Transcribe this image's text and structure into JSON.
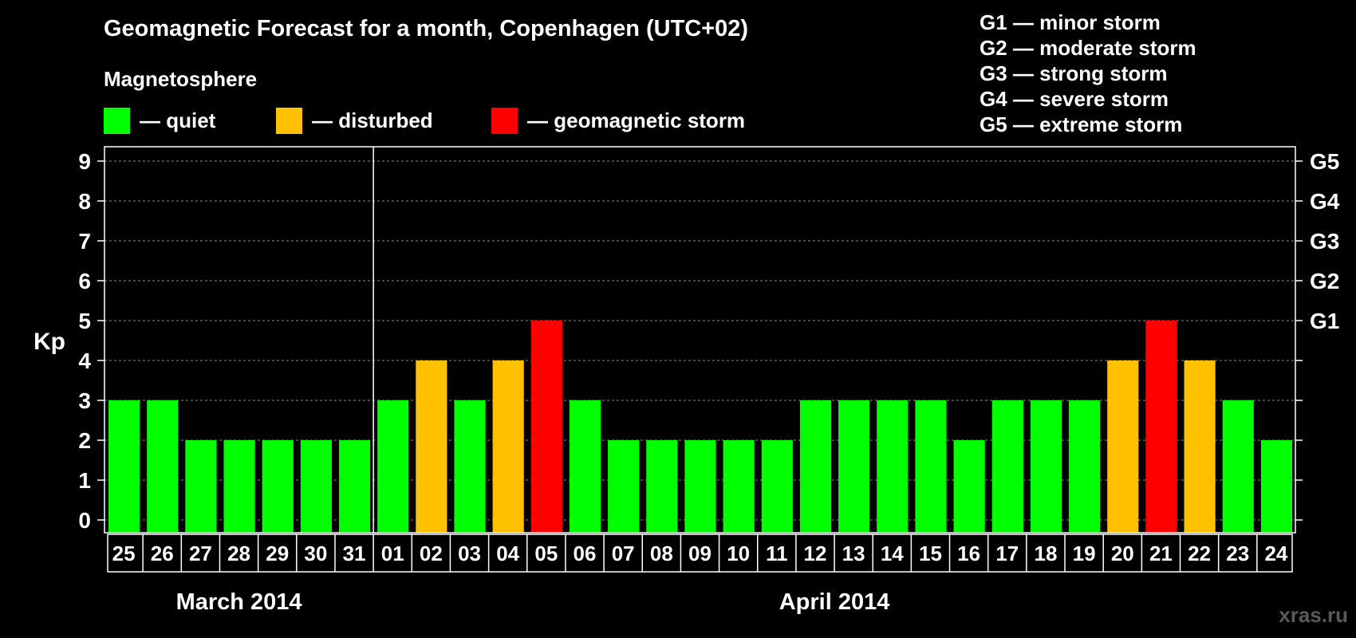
{
  "header": {
    "title": "Geomagnetic Forecast for a month, Copenhagen (UTC+02)",
    "subtitle": "Magnetosphere"
  },
  "legend": {
    "quiet": {
      "label": "— quiet",
      "color": "#00ff00"
    },
    "disturbed": {
      "label": "— disturbed",
      "color": "#ffc000"
    },
    "storm": {
      "label": "— geomagnetic storm",
      "color": "#ff0000"
    }
  },
  "g_scale_legend": [
    "G1 — minor storm",
    "G2 — moderate storm",
    "G3 — strong storm",
    "G4 — severe storm",
    "G5 — extreme storm"
  ],
  "watermark": "xras.ru",
  "chart_data": {
    "type": "bar",
    "ylabel": "Kp",
    "ylim": [
      0,
      9
    ],
    "yticks": [
      "0",
      "1",
      "2",
      "3",
      "4",
      "5",
      "6",
      "7",
      "8",
      "9"
    ],
    "right_axis_labels": [
      {
        "kp": 5,
        "label": "G1"
      },
      {
        "kp": 6,
        "label": "G2"
      },
      {
        "kp": 7,
        "label": "G3"
      },
      {
        "kp": 8,
        "label": "G4"
      },
      {
        "kp": 9,
        "label": "G5"
      }
    ],
    "grid": "dashed horizontal",
    "month_groups": [
      {
        "label": "March 2014",
        "count": 7
      },
      {
        "label": "April 2014",
        "count": 24
      }
    ],
    "categories": [
      "25",
      "26",
      "27",
      "28",
      "29",
      "30",
      "31",
      "01",
      "02",
      "03",
      "04",
      "05",
      "06",
      "07",
      "08",
      "09",
      "10",
      "11",
      "12",
      "13",
      "14",
      "15",
      "16",
      "17",
      "18",
      "19",
      "20",
      "21",
      "22",
      "23",
      "24"
    ],
    "values": [
      3,
      3,
      2,
      2,
      2,
      2,
      2,
      3,
      4,
      3,
      4,
      5,
      3,
      2,
      2,
      2,
      2,
      2,
      3,
      3,
      3,
      3,
      2,
      3,
      3,
      3,
      4,
      5,
      4,
      3,
      2
    ],
    "levels": [
      "quiet",
      "quiet",
      "quiet",
      "quiet",
      "quiet",
      "quiet",
      "quiet",
      "quiet",
      "disturbed",
      "quiet",
      "disturbed",
      "storm",
      "quiet",
      "quiet",
      "quiet",
      "quiet",
      "quiet",
      "quiet",
      "quiet",
      "quiet",
      "quiet",
      "quiet",
      "quiet",
      "quiet",
      "quiet",
      "quiet",
      "disturbed",
      "storm",
      "disturbed",
      "quiet",
      "quiet"
    ]
  }
}
